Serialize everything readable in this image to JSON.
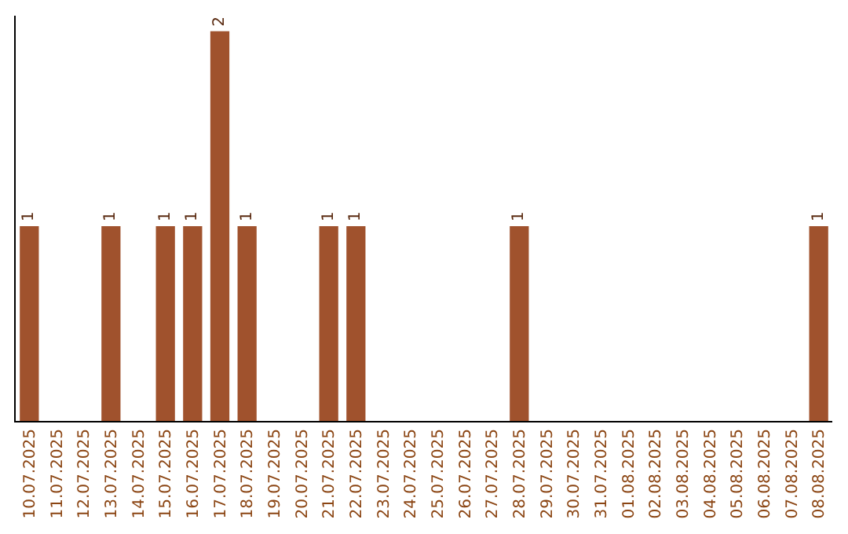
{
  "chart_data": {
    "type": "bar",
    "categories": [
      "10.07.2025",
      "11.07.2025",
      "12.07.2025",
      "13.07.2025",
      "14.07.2025",
      "15.07.2025",
      "16.07.2025",
      "17.07.2025",
      "18.07.2025",
      "19.07.2025",
      "20.07.2025",
      "21.07.2025",
      "22.07.2025",
      "23.07.2025",
      "24.07.2025",
      "25.07.2025",
      "26.07.2025",
      "27.07.2025",
      "28.07.2025",
      "29.07.2025",
      "30.07.2025",
      "31.07.2025",
      "01.08.2025",
      "02.08.2025",
      "03.08.2025",
      "04.08.2025",
      "05.08.2025",
      "06.08.2025",
      "07.08.2025",
      "08.08.2025"
    ],
    "values": [
      1,
      0,
      0,
      1,
      0,
      1,
      1,
      2,
      1,
      0,
      0,
      1,
      1,
      0,
      0,
      0,
      0,
      0,
      1,
      0,
      0,
      0,
      0,
      0,
      0,
      0,
      0,
      0,
      0,
      1
    ],
    "value_labels": [
      "1",
      null,
      null,
      "1",
      null,
      "1",
      "1",
      "2",
      "1",
      null,
      null,
      "1",
      "1",
      null,
      null,
      null,
      null,
      null,
      "1",
      null,
      null,
      null,
      null,
      null,
      null,
      null,
      null,
      null,
      null,
      "1"
    ],
    "color": "#a0522d",
    "ylim": [
      0,
      2.08
    ],
    "grid": false,
    "legend": false,
    "tick_labels": "x"
  }
}
